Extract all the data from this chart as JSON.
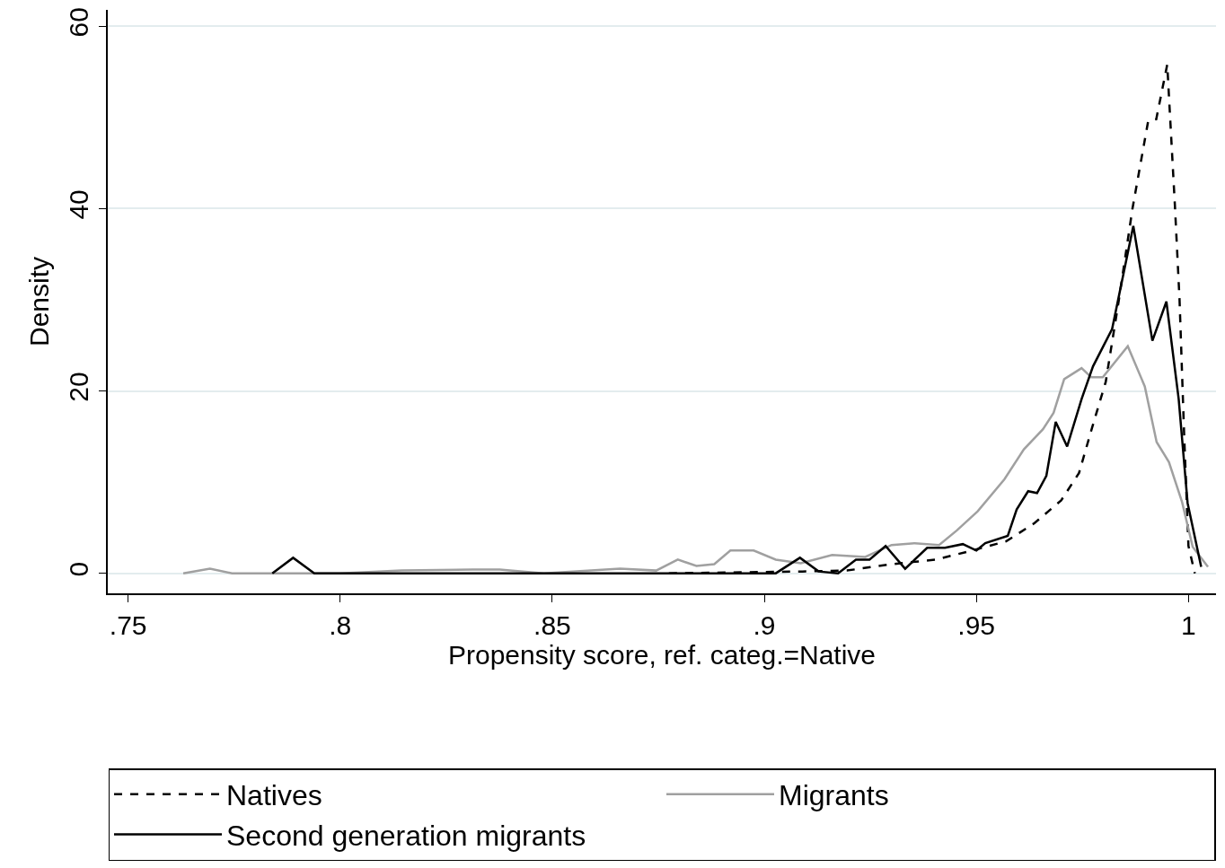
{
  "chart_data": {
    "type": "line",
    "xlabel": "Propensity score, ref. categ.=Native",
    "ylabel": "Density",
    "xlim": [
      0.7452,
      1.0065
    ],
    "ylim": [
      -2.2,
      61.8
    ],
    "xticks": [
      {
        "value": 0.75,
        "label": ".75"
      },
      {
        "value": 0.8,
        "label": ".8"
      },
      {
        "value": 0.85,
        "label": ".85"
      },
      {
        "value": 0.9,
        "label": ".9"
      },
      {
        "value": 0.95,
        "label": ".95"
      },
      1
    ],
    "yticks": [
      0,
      20,
      40,
      60
    ],
    "grid": "y",
    "legend": "bottom",
    "series": [
      {
        "name": "Natives",
        "color": "#000000",
        "line_style": "dashed",
        "x": [
          0.8775,
          0.909,
          0.9195,
          0.93,
          0.9405,
          0.949,
          0.957,
          0.9637,
          0.97,
          0.9742,
          0.9773,
          0.9805,
          0.9836,
          0.9868,
          0.9905,
          0.9924,
          0.995,
          0.9968,
          0.9979,
          0.999,
          1.0,
          1.0015
        ],
        "values": [
          0,
          0.2,
          0.3,
          1,
          1.5,
          2.5,
          3.5,
          5.5,
          8,
          11,
          16,
          21,
          30,
          40,
          49.6,
          49.8,
          55.8,
          40.4,
          30,
          15,
          3,
          0
        ]
      },
      {
        "name": "Migrants",
        "color": "#a0a0a0",
        "line_style": "solid",
        "x": [
          0.763,
          0.7693,
          0.7745,
          0.8,
          0.8145,
          0.8313,
          0.8376,
          0.848,
          0.866,
          0.8745,
          0.8796,
          0.884,
          0.8882,
          0.892,
          0.8975,
          0.9027,
          0.9086,
          0.916,
          0.9238,
          0.93,
          0.9355,
          0.9412,
          0.9454,
          0.9503,
          0.9566,
          0.9612,
          0.9657,
          0.9682,
          0.9707,
          0.9748,
          0.9771,
          0.9798,
          0.9857,
          0.9897,
          0.9925,
          0.9954,
          0.9985,
          1.001,
          1.0046
        ],
        "values": [
          0,
          0.5,
          0,
          0,
          0.3,
          0.4,
          0.4,
          0,
          0.5,
          0.3,
          1.5,
          0.8,
          1,
          2.5,
          2.5,
          1.5,
          1.1,
          2,
          1.8,
          3.1,
          3.3,
          3.1,
          4.7,
          6.8,
          10.3,
          13.6,
          15.8,
          17.6,
          21.3,
          22.5,
          21.5,
          21.5,
          24.9,
          20.5,
          14.4,
          12.2,
          7.8,
          2.9,
          0.7
        ]
      },
      {
        "name": "Second generation migrants",
        "color": "#000000",
        "line_style": "solid",
        "x": [
          0.784,
          0.7889,
          0.7939,
          0.9027,
          0.9084,
          0.9128,
          0.9174,
          0.9216,
          0.9248,
          0.9286,
          0.9332,
          0.9384,
          0.9426,
          0.9468,
          0.95,
          0.9521,
          0.9574,
          0.9595,
          0.9622,
          0.9643,
          0.9665,
          0.9687,
          0.9714,
          0.9748,
          0.9775,
          0.982,
          0.987,
          0.9915,
          0.9948,
          0.9977,
          0.9998,
          1.003
        ],
        "values": [
          0,
          1.7,
          0,
          0,
          1.7,
          0.2,
          0,
          1.5,
          1.5,
          3,
          0.5,
          2.8,
          2.8,
          3.2,
          2.5,
          3.3,
          4.1,
          7,
          9,
          8.8,
          10.7,
          16.6,
          13.9,
          19.1,
          22.7,
          26.8,
          38.1,
          25.5,
          29.8,
          19.1,
          7.7,
          0.7
        ]
      }
    ]
  }
}
